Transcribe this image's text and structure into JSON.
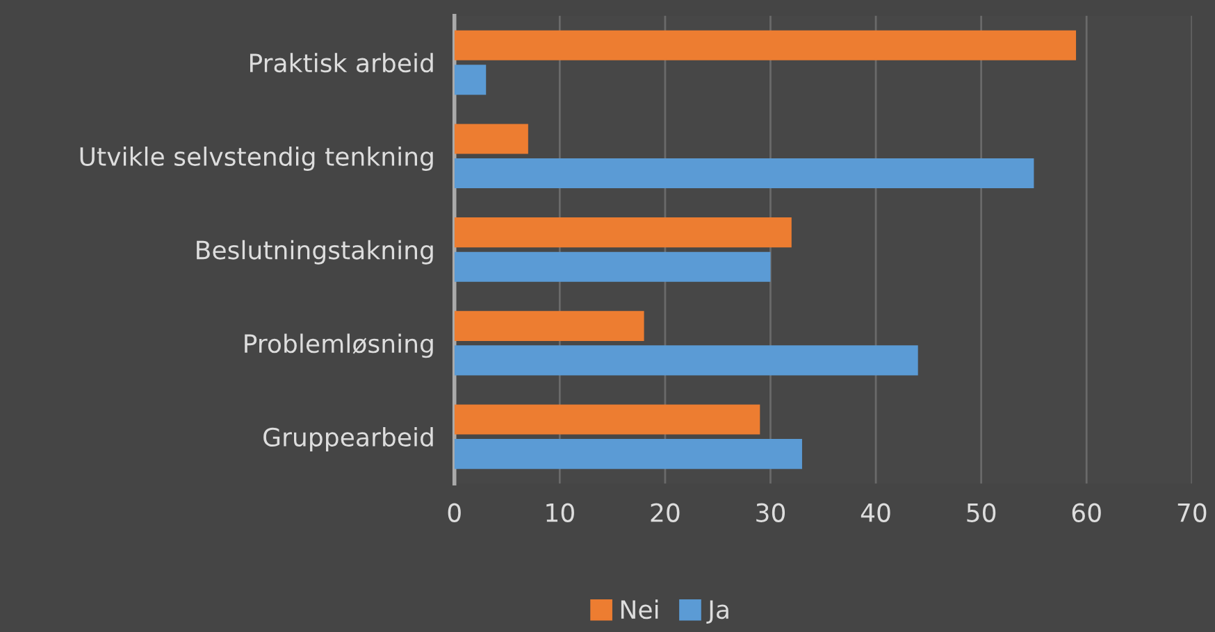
{
  "chart_data": {
    "type": "bar",
    "orientation": "horizontal",
    "categories": [
      "Praktisk arbeid",
      "Utvikle selvstendig tenkning",
      "Beslutningstakning",
      "Problemløsning",
      "Gruppearbeid"
    ],
    "series": [
      {
        "name": "Nei",
        "color": "#ed7d31",
        "values": [
          59,
          7,
          32,
          18,
          29
        ]
      },
      {
        "name": "Ja",
        "color": "#5b9bd5",
        "values": [
          3,
          55,
          30,
          44,
          33
        ]
      }
    ],
    "xlim": [
      0,
      70
    ],
    "xticks": [
      0,
      10,
      20,
      30,
      40,
      50,
      60,
      70
    ],
    "grid": "x",
    "legend": "bottom"
  }
}
